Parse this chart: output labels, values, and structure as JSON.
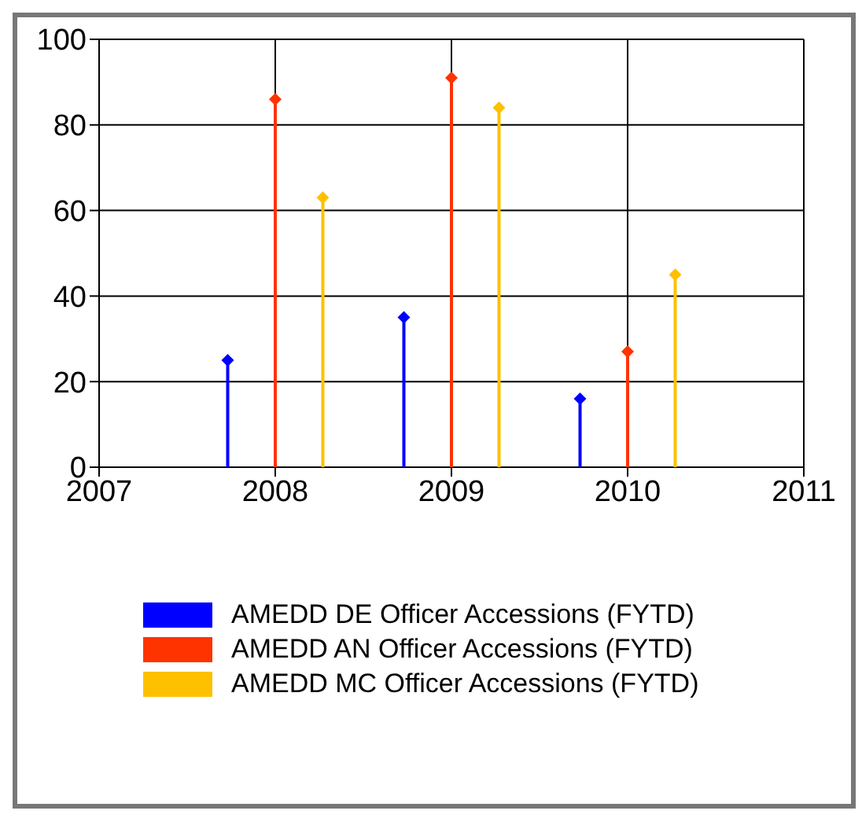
{
  "chart_data": {
    "type": "lollipop",
    "xlim": [
      2007,
      2011
    ],
    "xticks": [
      2007,
      2008,
      2009,
      2010,
      2011
    ],
    "ylim": [
      0,
      100
    ],
    "yticks": [
      0,
      20,
      40,
      60,
      80,
      100
    ],
    "grid": true,
    "legend": "bottom",
    "marker": "diamond",
    "series": [
      {
        "name": "AMEDD DE Officer Accessions (FYTD)",
        "color": "#0000ff",
        "x": [
          2007.73,
          2008.73,
          2009.73
        ],
        "values": [
          25,
          35,
          16
        ]
      },
      {
        "name": "AMEDD AN Officer Accessions (FYTD)",
        "color": "#ff3300",
        "x": [
          2008,
          2009,
          2010
        ],
        "values": [
          86,
          91,
          27
        ]
      },
      {
        "name": "AMEDD MC Officer Accessions (FYTD)",
        "color": "#ffc000",
        "x": [
          2008.27,
          2009.27,
          2010.27
        ],
        "values": [
          63,
          84,
          45
        ]
      }
    ]
  }
}
